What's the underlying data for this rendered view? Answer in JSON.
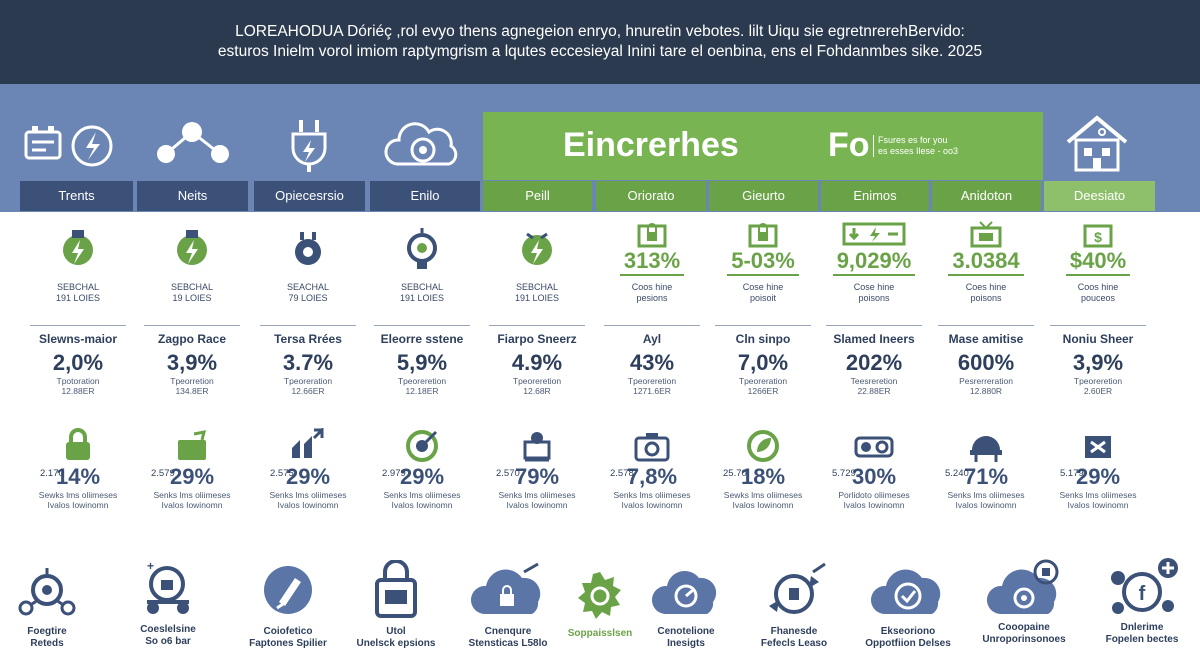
{
  "header": {
    "line1": "LOREAHODUA Dóriéç ,rol evyo thens agnegeion enryo, hnuretin vebotes. lilt Uiqu sie egretnrerehBervido:",
    "line2": "esturos Inielm vorol imiom raptymgrism a lqutes eccesieyal Inini tare el oenbina, ens el Fohdanmbes sike. 2025"
  },
  "banner": {
    "title": "Eincrerhes",
    "title2": "Fo",
    "note_line1": "Fsures es for you",
    "note_line2": "es esses Ilese - oo3"
  },
  "tabs": [
    "Trents",
    "Neits",
    "Opiecesrsio",
    "Enilo",
    "Peill",
    "Oriorato",
    "Gieurto",
    "Enimos",
    "Anidoton",
    "Deesiato"
  ],
  "row1": [
    {
      "label1": "SEBCHAL",
      "label2": "191 LOIES"
    },
    {
      "label1": "SEBCHAL",
      "label2": "19 LOIES"
    },
    {
      "label1": "SEACHAL",
      "label2": "79 LOIES"
    },
    {
      "label1": "SEBCHAL",
      "label2": "191 LOIES"
    },
    {
      "label1": "SEBCHAL",
      "label2": "191 LOIES"
    },
    {
      "pct": "313%",
      "label1": "Coos hine",
      "label2": "pesions"
    },
    {
      "pct": "5-03%",
      "label1": "Cose hine",
      "label2": "poisoit"
    },
    {
      "pct": "9,029%",
      "label1": "Cose hine",
      "label2": "poisons"
    },
    {
      "pct": "3.0384",
      "label1": "Coes hine",
      "label2": "poisons"
    },
    {
      "pct": "$40%",
      "label1": "Coos hine",
      "label2": "pouceos"
    }
  ],
  "row2": [
    {
      "title": "Slewns-maior",
      "val": "2,0%",
      "sub1": "Tpotoration",
      "sub2": "12.88ER"
    },
    {
      "title": "Zagpo Race",
      "val": "3,9%",
      "sub1": "Tpeorretion",
      "sub2": "134.8ER"
    },
    {
      "title": "Tersa Rrées",
      "val": "3.7%",
      "sub1": "Tpeoreration",
      "sub2": "12.66ER"
    },
    {
      "title": "Eleorre sstene",
      "val": "5,9%",
      "sub1": "Tpeoreretion",
      "sub2": "12.18ER"
    },
    {
      "title": "Fiarpo Sneerz",
      "val": "4.9%",
      "sub1": "Tpeoreretion",
      "sub2": "12.68R"
    },
    {
      "title": "Ayl",
      "val": "43%",
      "sub1": "Tpeoreretion",
      "sub2": "1271.6ER"
    },
    {
      "title": "Cln sinpo",
      "val": "7,0%",
      "sub1": "Tpeoreration",
      "sub2": "1266ER"
    },
    {
      "title": "Slamed Ineers",
      "val": "202%",
      "sub1": "Teesreretion",
      "sub2": "22.88ER"
    },
    {
      "title": "Mase amitise",
      "val": "600%",
      "sub1": "Pesrerreration",
      "sub2": "12.880R"
    },
    {
      "title": "Noniu Sheer",
      "val": "3,9%",
      "sub1": "Tpeoreretion",
      "sub2": "2.60ER"
    }
  ],
  "row3": [
    {
      "num": "2.170",
      "val": "14%",
      "sub1": "Sewks lms oliimeses",
      "sub2": "Ivalos Iowinomn"
    },
    {
      "num": "2.579",
      "val": "29%",
      "sub1": "Senks lms oliimeses",
      "sub2": "Ivalos Iowinomn"
    },
    {
      "num": "2.575",
      "val": "29%",
      "sub1": "Senks lms oliimeses",
      "sub2": "Ivalos Iowinomn"
    },
    {
      "num": "2.979",
      "val": "29%",
      "sub1": "Senks lms oliimeses",
      "sub2": "Ivalos Iowinomn"
    },
    {
      "num": "2.570",
      "val": "79%",
      "sub1": "Senks lms oliimeses",
      "sub2": "Ivalos Iowinomn"
    },
    {
      "num": "2.578",
      "val": "7,8%",
      "sub1": "Senks lms oliimeses",
      "sub2": "Ivalos Iowinomn"
    },
    {
      "num": "25.70",
      "val": "18%",
      "sub1": "Sewks lms oliimeses",
      "sub2": "Ivalos Iowinomn"
    },
    {
      "num": "5.729",
      "val": "30%",
      "sub1": "Porlidoto oliimeses",
      "sub2": "Ivalos Iowinomn"
    },
    {
      "num": "5.240",
      "val": "71%",
      "sub1": "Senks lms oliimeses",
      "sub2": "Ivalos Iowinomn"
    },
    {
      "num": "5.179",
      "val": "29%",
      "sub1": "Senks lms oliimeses",
      "sub2": "Ivalos Iowinomn"
    }
  ],
  "bottom": [
    {
      "l1": "Foegtire",
      "l2": "Reteds"
    },
    {
      "l1": "Coeslelsine",
      "l2": "So o6 bar"
    },
    {
      "l1": "Coiofetico",
      "l2": "Faptones Spilier"
    },
    {
      "l1": "Utol",
      "l2": "Unelsck epsions"
    },
    {
      "l1": "Cnenqure",
      "l2": "Stensticas L58lo"
    },
    {
      "l1": "Soppaisslsen",
      "l2": ""
    },
    {
      "l1": "Cenotelione",
      "l2": "Inesigts"
    },
    {
      "l1": "Fhanesde",
      "l2": "Fefecls Leaso"
    },
    {
      "l1": "Ekseoriono",
      "l2": "Oppotfiion Delses"
    },
    {
      "l1": "Cooopaine",
      "l2": "Unroporinsonoes"
    },
    {
      "l1": "Dnlerime",
      "l2": "Fopelen bectes"
    }
  ],
  "colors": {
    "navy": "#2c3a4f",
    "band": "#6b86b4",
    "tab": "#3c5178",
    "green": "#6aa347",
    "text": "#2d3f5c"
  }
}
